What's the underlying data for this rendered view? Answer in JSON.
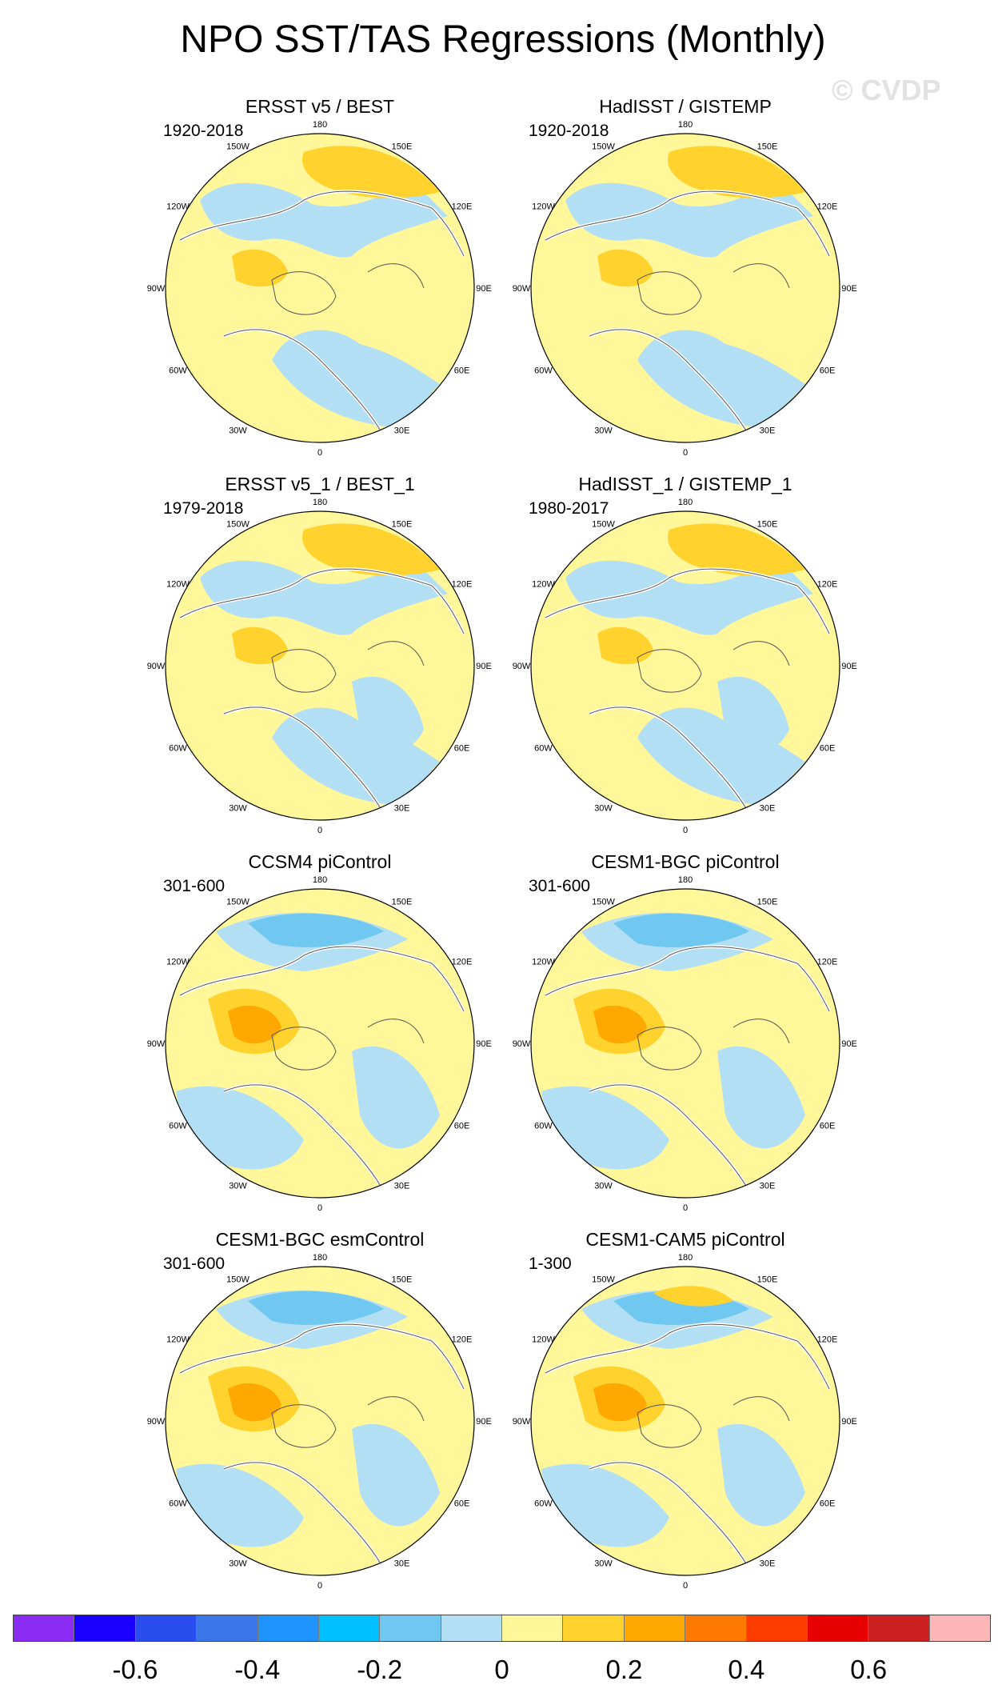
{
  "figure": {
    "title": "NPO SST/TAS Regressions (Monthly)",
    "watermark": "© CVDP"
  },
  "lon_labels": [
    "180",
    "150E",
    "120E",
    "90E",
    "60E",
    "30E",
    "0",
    "30W",
    "60W",
    "90W",
    "120W",
    "150W"
  ],
  "panels": [
    {
      "name": "ERSST v5 / BEST",
      "period": "1920-2018",
      "pattern": "obs"
    },
    {
      "name": "HadISST / GISTEMP",
      "period": "1920-2018",
      "pattern": "obs"
    },
    {
      "name": "ERSST v5_1 / BEST_1",
      "period": "1979-2018",
      "pattern": "obs2"
    },
    {
      "name": "HadISST_1 / GISTEMP_1",
      "period": "1980-2017",
      "pattern": "obs2"
    },
    {
      "name": "CCSM4 piControl",
      "period": "301-600",
      "pattern": "model"
    },
    {
      "name": "CESM1-BGC piControl",
      "period": "301-600",
      "pattern": "model"
    },
    {
      "name": "CESM1-BGC esmControl",
      "period": "301-600",
      "pattern": "model"
    },
    {
      "name": "CESM1-CAM5 piControl",
      "period": "1-300",
      "pattern": "model2"
    }
  ],
  "colorbar": {
    "colors": [
      "#8b2cf5",
      "#1a00ff",
      "#2a4df0",
      "#3a78ea",
      "#1f94ff",
      "#00c0ff",
      "#70c8f0",
      "#b3dff4",
      "#fff79a",
      "#ffd22e",
      "#ffa800",
      "#ff7a00",
      "#ff3c00",
      "#e60000",
      "#cc1f1f",
      "#ffb6b6"
    ],
    "labels": [
      "-0.6",
      "-0.4",
      "-0.2",
      "0",
      "0.2",
      "0.4",
      "0.6"
    ]
  }
}
